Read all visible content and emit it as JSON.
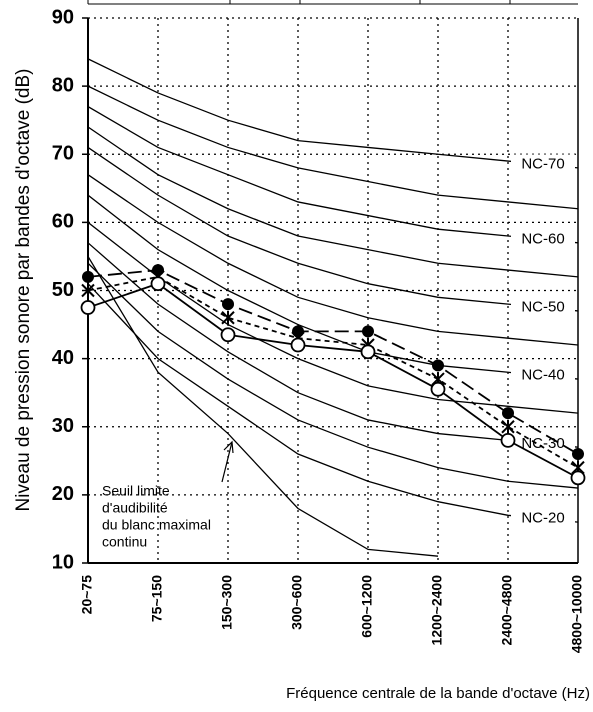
{
  "chart_data": {
    "type": "line",
    "x_label": "Fréquence centrale de la bande d'octave (Hz)",
    "y_label": "Niveau de pression sonore par bandes d'octave (dB)",
    "categories": [
      "20~75",
      "75~150",
      "150~300",
      "300~600",
      "600~1200",
      "1200~2400",
      "2400~4800",
      "4800~10000"
    ],
    "ylim": [
      10,
      90
    ],
    "yticks": [
      10,
      20,
      30,
      40,
      50,
      60,
      70,
      80,
      90
    ],
    "grid": true,
    "series": [
      {
        "name": "NC-70",
        "color": "#000000",
        "line_style": "solid",
        "marker": "none",
        "values": [
          84,
          79,
          75,
          72,
          71,
          70,
          69,
          68
        ]
      },
      {
        "color": "#000000",
        "line_style": "solid",
        "marker": "none",
        "values": [
          80,
          75,
          71,
          68,
          66,
          64,
          63,
          62
        ]
      },
      {
        "name": "NC-60",
        "color": "#000000",
        "line_style": "solid",
        "marker": "none",
        "values": [
          77,
          71,
          67,
          63,
          61,
          59,
          58,
          57
        ]
      },
      {
        "color": "#000000",
        "line_style": "solid",
        "marker": "none",
        "values": [
          74,
          67,
          62,
          58,
          56,
          54,
          53,
          52
        ]
      },
      {
        "name": "NC-50",
        "color": "#000000",
        "line_style": "solid",
        "marker": "none",
        "values": [
          71,
          64,
          58,
          54,
          51,
          49,
          48,
          47
        ]
      },
      {
        "color": "#000000",
        "line_style": "solid",
        "marker": "none",
        "values": [
          67,
          60,
          54,
          49,
          46,
          44,
          43,
          42
        ]
      },
      {
        "name": "NC-40",
        "color": "#000000",
        "line_style": "solid",
        "marker": "none",
        "values": [
          64,
          56,
          50,
          45,
          41,
          39,
          38,
          37
        ]
      },
      {
        "color": "#000000",
        "line_style": "solid",
        "marker": "none",
        "values": [
          60,
          52,
          45,
          40,
          36,
          34,
          33,
          32
        ]
      },
      {
        "name": "NC-30",
        "color": "#000000",
        "line_style": "solid",
        "marker": "none",
        "values": [
          57,
          48,
          41,
          35,
          31,
          29,
          28,
          27
        ]
      },
      {
        "color": "#000000",
        "line_style": "solid",
        "marker": "none",
        "values": [
          54,
          44,
          37,
          31,
          27,
          24,
          22,
          21
        ]
      },
      {
        "name": "NC-20",
        "color": "#000000",
        "line_style": "solid",
        "marker": "none",
        "values": [
          51,
          40,
          33,
          26,
          22,
          19,
          17,
          16
        ]
      },
      {
        "color": "#000000",
        "line_style": "solid",
        "marker": "none",
        "values": [
          55,
          38,
          29,
          18,
          12,
          11,
          null,
          null
        ]
      },
      {
        "color": "#000000",
        "line_style": "longdash",
        "marker": "filled-circle",
        "values": [
          52,
          53,
          48,
          44,
          44,
          39,
          32,
          26
        ]
      },
      {
        "color": "#000000",
        "line_style": "shortdash",
        "marker": "star",
        "values": [
          50,
          52,
          46,
          43,
          42,
          37,
          30,
          24
        ]
      },
      {
        "color": "#000000",
        "line_style": "solid",
        "marker": "open-circle",
        "values": [
          47.5,
          51,
          43.5,
          42,
          41,
          35.5,
          28,
          22.5
        ]
      }
    ],
    "annotation": [
      "Seuil limite",
      "d'audibilité",
      "du blanc maximal",
      "continu"
    ]
  }
}
